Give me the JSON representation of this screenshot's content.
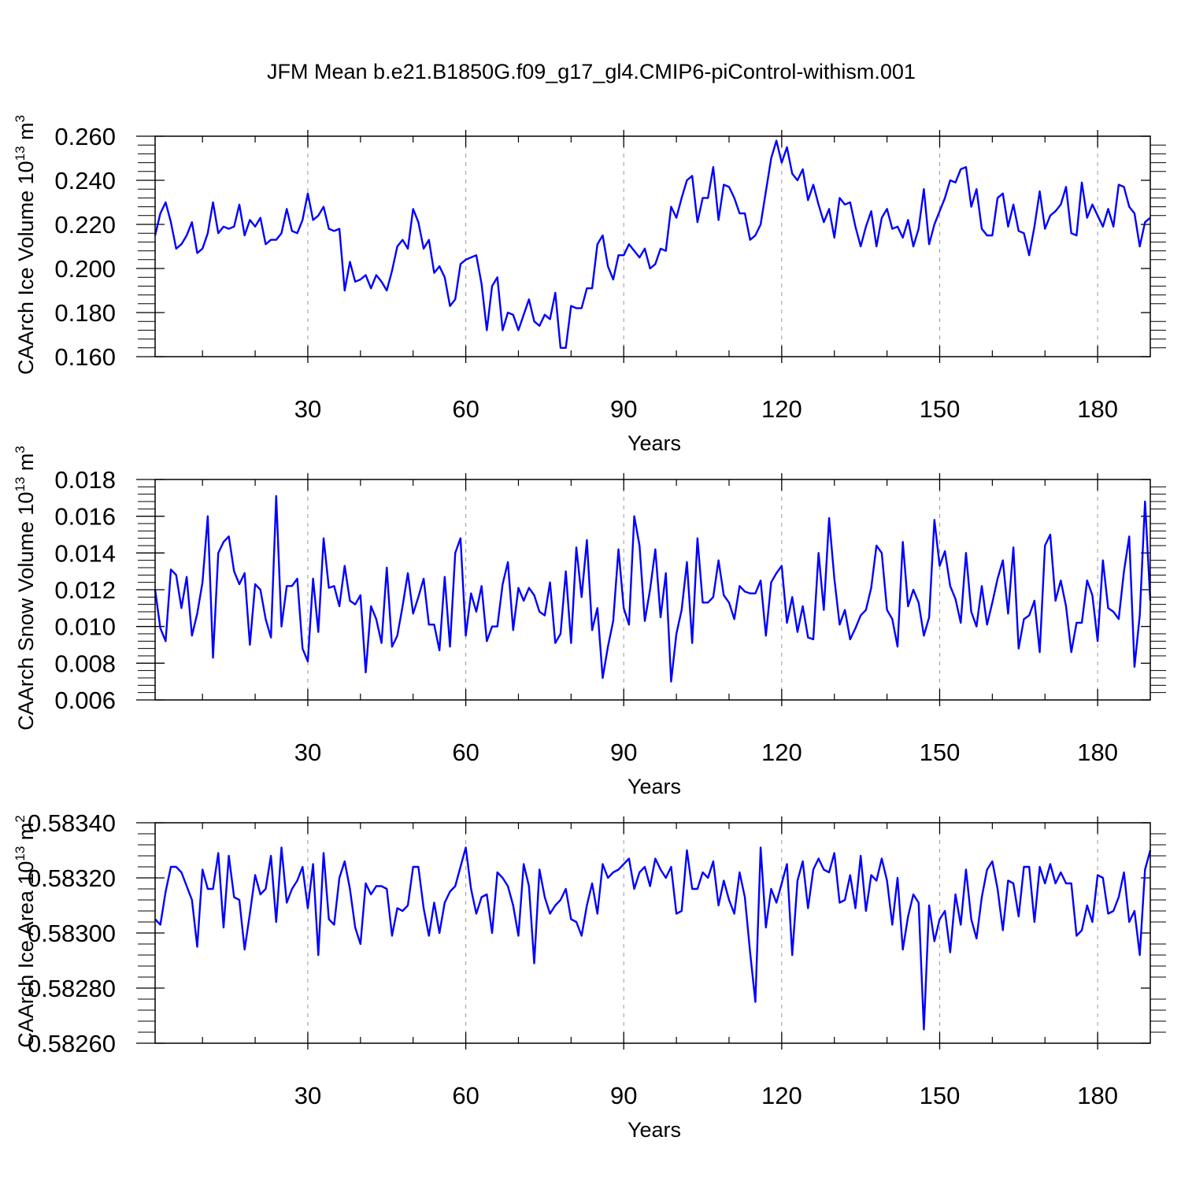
{
  "title": "JFM Mean b.e21.B1850G.f09_g17_gl4.CMIP6-piControl-withism.001",
  "line_color": "#0000ff",
  "grid_color": "#999999",
  "chart_data": [
    {
      "type": "line",
      "name": "ice-volume",
      "xlabel": "Years",
      "ylabel_main": "CAArch Ice Volume 10",
      "ylabel_sup": "13",
      "ylabel_unit": " m",
      "ylabel_unit_sup": "3",
      "xlim": [
        1,
        190
      ],
      "ylim": [
        0.16,
        0.26
      ],
      "xticks": [
        30,
        60,
        90,
        120,
        150,
        180
      ],
      "xtick_labels": [
        "30",
        "60",
        "90",
        "120",
        "150",
        "180"
      ],
      "yticks": [
        0.16,
        0.18,
        0.2,
        0.22,
        0.24,
        0.26
      ],
      "ytick_labels": [
        "0.160",
        "0.180",
        "0.200",
        "0.220",
        "0.240",
        "0.260"
      ],
      "vgrid": [
        30,
        60,
        90,
        120,
        150,
        180
      ],
      "x_start": 1,
      "values": [
        0.215,
        0.225,
        0.23,
        0.221,
        0.209,
        0.211,
        0.215,
        0.221,
        0.207,
        0.209,
        0.216,
        0.23,
        0.216,
        0.219,
        0.218,
        0.219,
        0.229,
        0.215,
        0.222,
        0.219,
        0.223,
        0.211,
        0.213,
        0.213,
        0.216,
        0.227,
        0.217,
        0.216,
        0.222,
        0.234,
        0.222,
        0.224,
        0.228,
        0.218,
        0.217,
        0.218,
        0.19,
        0.203,
        0.194,
        0.195,
        0.197,
        0.191,
        0.197,
        0.194,
        0.19,
        0.199,
        0.21,
        0.213,
        0.209,
        0.227,
        0.221,
        0.209,
        0.213,
        0.198,
        0.201,
        0.196,
        0.183,
        0.186,
        0.202,
        0.204,
        0.205,
        0.206,
        0.193,
        0.172,
        0.192,
        0.196,
        0.172,
        0.18,
        0.179,
        0.172,
        0.179,
        0.186,
        0.176,
        0.174,
        0.179,
        0.177,
        0.189,
        0.164,
        0.164,
        0.183,
        0.182,
        0.182,
        0.191,
        0.191,
        0.211,
        0.215,
        0.201,
        0.195,
        0.206,
        0.206,
        0.211,
        0.208,
        0.205,
        0.209,
        0.2,
        0.202,
        0.209,
        0.208,
        0.228,
        0.223,
        0.232,
        0.24,
        0.242,
        0.221,
        0.232,
        0.232,
        0.246,
        0.222,
        0.238,
        0.237,
        0.232,
        0.225,
        0.225,
        0.213,
        0.215,
        0.22,
        0.235,
        0.25,
        0.258,
        0.248,
        0.255,
        0.243,
        0.24,
        0.245,
        0.231,
        0.238,
        0.229,
        0.221,
        0.227,
        0.214,
        0.232,
        0.229,
        0.23,
        0.219,
        0.21,
        0.219,
        0.226,
        0.21,
        0.223,
        0.227,
        0.218,
        0.219,
        0.214,
        0.222,
        0.21,
        0.218,
        0.236,
        0.211,
        0.22,
        0.226,
        0.232,
        0.24,
        0.239,
        0.245,
        0.246,
        0.228,
        0.236,
        0.218,
        0.215,
        0.215,
        0.232,
        0.234,
        0.219,
        0.229,
        0.217,
        0.216,
        0.206,
        0.219,
        0.235,
        0.218,
        0.224,
        0.226,
        0.229,
        0.237,
        0.216,
        0.215,
        0.239,
        0.223,
        0.229,
        0.224,
        0.219,
        0.227,
        0.219,
        0.238,
        0.237,
        0.228,
        0.225,
        0.21,
        0.221,
        0.223
      ]
    },
    {
      "type": "line",
      "name": "snow-volume",
      "xlabel": "Years",
      "ylabel_main": "CAArch Snow Volume 10",
      "ylabel_sup": "13",
      "ylabel_unit": " m",
      "ylabel_unit_sup": "3",
      "xlim": [
        1,
        190
      ],
      "ylim": [
        0.006,
        0.018
      ],
      "xticks": [
        30,
        60,
        90,
        120,
        150,
        180
      ],
      "xtick_labels": [
        "30",
        "60",
        "90",
        "120",
        "150",
        "180"
      ],
      "yticks": [
        0.006,
        0.008,
        0.01,
        0.012,
        0.014,
        0.016,
        0.018
      ],
      "ytick_labels": [
        "0.006",
        "0.008",
        "0.010",
        "0.012",
        "0.014",
        "0.016",
        "0.018"
      ],
      "vgrid": [
        30,
        60,
        90,
        120,
        150,
        180
      ],
      "x_start": 1,
      "values": [
        0.012,
        0.0099,
        0.0092,
        0.0131,
        0.0128,
        0.011,
        0.0127,
        0.0095,
        0.0107,
        0.0124,
        0.016,
        0.0083,
        0.014,
        0.0146,
        0.0149,
        0.013,
        0.0123,
        0.0129,
        0.009,
        0.0123,
        0.012,
        0.0104,
        0.0094,
        0.0171,
        0.01,
        0.0122,
        0.0122,
        0.0126,
        0.0088,
        0.0081,
        0.0126,
        0.0097,
        0.0148,
        0.0121,
        0.0122,
        0.0111,
        0.0133,
        0.0114,
        0.0112,
        0.0117,
        0.0075,
        0.0111,
        0.0104,
        0.0091,
        0.0132,
        0.0089,
        0.0095,
        0.0111,
        0.0129,
        0.0107,
        0.0116,
        0.0126,
        0.0101,
        0.0101,
        0.0087,
        0.0127,
        0.0089,
        0.014,
        0.0148,
        0.0095,
        0.0118,
        0.0108,
        0.0122,
        0.0092,
        0.01,
        0.01,
        0.0123,
        0.0135,
        0.0098,
        0.0121,
        0.0114,
        0.0121,
        0.0117,
        0.0108,
        0.0106,
        0.0124,
        0.0091,
        0.0096,
        0.013,
        0.0091,
        0.0143,
        0.0116,
        0.0147,
        0.0098,
        0.011,
        0.0072,
        0.0089,
        0.0103,
        0.0142,
        0.011,
        0.0101,
        0.016,
        0.0144,
        0.0103,
        0.012,
        0.0142,
        0.0105,
        0.0129,
        0.007,
        0.0096,
        0.0109,
        0.0135,
        0.0091,
        0.0148,
        0.0113,
        0.0113,
        0.0116,
        0.0136,
        0.0117,
        0.0113,
        0.0104,
        0.0122,
        0.0119,
        0.0118,
        0.0118,
        0.0125,
        0.0095,
        0.0124,
        0.0129,
        0.0133,
        0.0102,
        0.0116,
        0.0097,
        0.0111,
        0.0094,
        0.0093,
        0.014,
        0.0109,
        0.0159,
        0.0126,
        0.0101,
        0.0109,
        0.0093,
        0.0099,
        0.0106,
        0.0109,
        0.0121,
        0.0144,
        0.014,
        0.0109,
        0.0104,
        0.0089,
        0.0146,
        0.0111,
        0.012,
        0.0113,
        0.0095,
        0.0105,
        0.0158,
        0.0133,
        0.0141,
        0.0122,
        0.0115,
        0.0102,
        0.014,
        0.0108,
        0.01,
        0.0122,
        0.0101,
        0.0113,
        0.0126,
        0.0136,
        0.0107,
        0.0143,
        0.0088,
        0.0104,
        0.0106,
        0.0114,
        0.0086,
        0.0144,
        0.015,
        0.0114,
        0.0125,
        0.0111,
        0.0086,
        0.0102,
        0.0102,
        0.0125,
        0.0117,
        0.0092,
        0.0136,
        0.011,
        0.0108,
        0.0104,
        0.013,
        0.0149,
        0.0078,
        0.0106,
        0.0168,
        0.0114
      ]
    },
    {
      "type": "line",
      "name": "ice-area",
      "xlabel": "Years",
      "ylabel_main": "CAArch Ice Area 10",
      "ylabel_sup": "13",
      "ylabel_unit": " m",
      "ylabel_unit_sup": "2",
      "xlim": [
        1,
        190
      ],
      "ylim": [
        0.5826,
        0.5834
      ],
      "xticks": [
        30,
        60,
        90,
        120,
        150,
        180
      ],
      "xtick_labels": [
        "30",
        "60",
        "90",
        "120",
        "150",
        "180"
      ],
      "yticks": [
        0.5826,
        0.5828,
        0.583,
        0.5832,
        0.5834
      ],
      "ytick_labels": [
        "0.58260",
        "0.58280",
        "0.58300",
        "0.58320",
        "0.58340"
      ],
      "vgrid": [
        30,
        60,
        90,
        120,
        150,
        180
      ],
      "x_start": 1,
      "values": [
        0.58305,
        0.58303,
        0.58315,
        0.58324,
        0.58324,
        0.58322,
        0.58317,
        0.58312,
        0.58295,
        0.58323,
        0.58316,
        0.58316,
        0.58329,
        0.58302,
        0.58328,
        0.58313,
        0.58312,
        0.58294,
        0.58307,
        0.58321,
        0.58314,
        0.58316,
        0.58328,
        0.58304,
        0.58331,
        0.58311,
        0.58316,
        0.58319,
        0.58324,
        0.58309,
        0.58325,
        0.58292,
        0.58329,
        0.58305,
        0.58303,
        0.5832,
        0.58326,
        0.58316,
        0.58302,
        0.58296,
        0.58318,
        0.58314,
        0.58317,
        0.58317,
        0.58316,
        0.58299,
        0.58309,
        0.58308,
        0.5831,
        0.58324,
        0.58324,
        0.58309,
        0.58299,
        0.58311,
        0.583,
        0.58311,
        0.58315,
        0.58317,
        0.58324,
        0.58331,
        0.58316,
        0.58307,
        0.58313,
        0.58314,
        0.583,
        0.58322,
        0.5832,
        0.58317,
        0.5831,
        0.58299,
        0.58325,
        0.58317,
        0.58289,
        0.58323,
        0.58313,
        0.58307,
        0.5831,
        0.58312,
        0.58316,
        0.58305,
        0.58304,
        0.58299,
        0.5831,
        0.58318,
        0.58307,
        0.58325,
        0.5832,
        0.58322,
        0.58323,
        0.58325,
        0.58327,
        0.58316,
        0.58322,
        0.58324,
        0.58317,
        0.58327,
        0.58323,
        0.5832,
        0.58324,
        0.58307,
        0.58308,
        0.5833,
        0.58316,
        0.58316,
        0.58322,
        0.5832,
        0.58326,
        0.5831,
        0.58319,
        0.58312,
        0.58307,
        0.58322,
        0.58313,
        0.58293,
        0.58275,
        0.58331,
        0.58302,
        0.58316,
        0.58311,
        0.58318,
        0.58325,
        0.58292,
        0.58319,
        0.58326,
        0.58309,
        0.58323,
        0.58327,
        0.58323,
        0.58322,
        0.58329,
        0.58311,
        0.58312,
        0.58321,
        0.58309,
        0.58328,
        0.58308,
        0.58321,
        0.58319,
        0.58327,
        0.58319,
        0.58303,
        0.5832,
        0.58294,
        0.58306,
        0.58314,
        0.58311,
        0.58265,
        0.5831,
        0.58297,
        0.58305,
        0.58308,
        0.58293,
        0.58314,
        0.58303,
        0.58323,
        0.58305,
        0.58298,
        0.58313,
        0.58323,
        0.58326,
        0.58316,
        0.58301,
        0.58319,
        0.58318,
        0.58306,
        0.58324,
        0.58324,
        0.58304,
        0.58324,
        0.58318,
        0.58325,
        0.58318,
        0.58322,
        0.58318,
        0.58318,
        0.58299,
        0.58301,
        0.5831,
        0.58304,
        0.58321,
        0.5832,
        0.58307,
        0.58308,
        0.58313,
        0.58322,
        0.58304,
        0.58308,
        0.58292,
        0.58323,
        0.5833
      ]
    }
  ]
}
